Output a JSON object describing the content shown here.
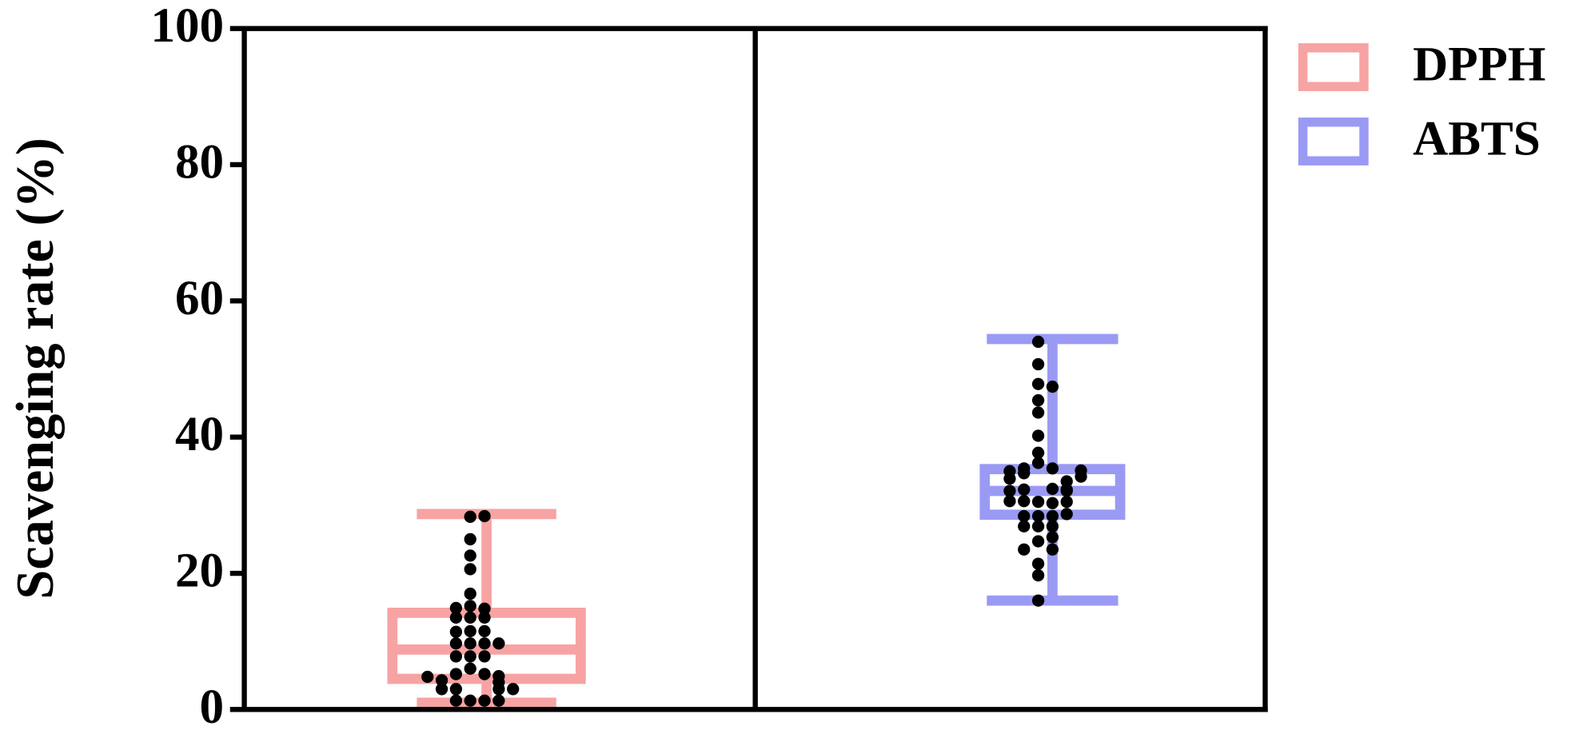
{
  "chart_data": {
    "type": "box",
    "ylabel": "Scavenging rate (%)",
    "ylim": [
      0,
      100
    ],
    "yticks": [
      0,
      20,
      40,
      60,
      80,
      100
    ],
    "legend": "outside-upper-right",
    "series": [
      {
        "name": "DPPH",
        "color": "#f7a3a3",
        "min": 1.0,
        "q1": 4.5,
        "median": 8.8,
        "q3": 14.2,
        "max": 28.7,
        "points": [
          28.3,
          28.4,
          25.0,
          22.6,
          20.6,
          17.0,
          15.2,
          14.8,
          14.9,
          13.5,
          13.5,
          13.5,
          11.5,
          11.5,
          11.4,
          9.7,
          9.7,
          9.7,
          9.7,
          7.8,
          7.8,
          7.8,
          6.0,
          5.2,
          5.2,
          4.9,
          4.0,
          4.3,
          4.8,
          3.0,
          3.0,
          3.0,
          3.0,
          1.3,
          1.3,
          1.3,
          1.3
        ]
      },
      {
        "name": "ABTS",
        "color": "#9a9af4",
        "min": 16.0,
        "q1": 28.6,
        "median": 32.1,
        "q3": 35.3,
        "max": 54.4,
        "points": [
          54.0,
          50.7,
          47.8,
          47.4,
          45.4,
          43.6,
          40.2,
          37.7,
          36.2,
          35.4,
          35.4,
          34.7,
          35.0,
          35.1,
          34.2,
          33.9,
          33.5,
          32.4,
          32.3,
          32.3,
          32.1,
          32.1,
          30.5,
          30.3,
          30.6,
          30.5,
          30.6,
          28.4,
          28.4,
          28.4,
          28.7,
          26.9,
          26.9,
          26.9,
          24.7,
          25.3,
          23.5,
          23.5,
          21.4,
          19.7,
          16.0
        ]
      }
    ]
  }
}
